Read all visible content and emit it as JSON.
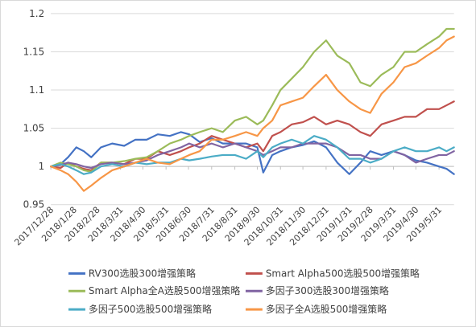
{
  "chart_data": {
    "type": "line",
    "title": "",
    "xlabel": "",
    "ylabel": "",
    "ylim": [
      0.95,
      1.2
    ],
    "yticks": [
      "0.95",
      "1",
      "1.05",
      "1.1",
      "1.15",
      "1.2"
    ],
    "yticks_values": [
      0.95,
      1.0,
      1.05,
      1.1,
      1.15,
      1.2
    ],
    "x_tick_labels": [
      "2017/12/28",
      "2018/1/28",
      "2018/2/28",
      "2018/3/31",
      "2018/4/30",
      "2018/5/31",
      "2018/6/30",
      "2018/7/31",
      "2018/8/31",
      "2018/9/30",
      "2018/10/31",
      "2018/11/30",
      "2018/12/31",
      "2019/1/31",
      "2019/2/28",
      "2019/3/31",
      "2019/4/30",
      "2019/5/31"
    ],
    "grid": "horizontal",
    "legend_position": "bottom",
    "x_start": "2017/12/28",
    "x_end": "2019/6/20",
    "series": [
      {
        "name": "RV300选股300增强策略",
        "color": "#4472C4",
        "x": [
          "2017/12/28",
          "2018/1/10",
          "2018/1/20",
          "2018/1/31",
          "2018/2/10",
          "2018/2/20",
          "2018/3/5",
          "2018/3/20",
          "2018/4/5",
          "2018/4/20",
          "2018/5/5",
          "2018/5/20",
          "2018/6/5",
          "2018/6/20",
          "2018/7/1",
          "2018/7/15",
          "2018/7/31",
          "2018/8/15",
          "2018/8/31",
          "2018/9/15",
          "2018/9/30",
          "2018/10/8",
          "2018/10/20",
          "2018/10/31",
          "2018/11/15",
          "2018/11/30",
          "2018/12/15",
          "2018/12/31",
          "2019/1/15",
          "2019/1/31",
          "2019/2/15",
          "2019/2/28",
          "2019/3/15",
          "2019/3/31",
          "2019/4/15",
          "2019/4/30",
          "2019/5/15",
          "2019/5/31",
          "2019/6/10",
          "2019/6/20"
        ],
        "values": [
          1.0,
          1.003,
          1.012,
          1.025,
          1.02,
          1.012,
          1.025,
          1.03,
          1.027,
          1.035,
          1.035,
          1.042,
          1.04,
          1.045,
          1.042,
          1.032,
          1.037,
          1.03,
          1.03,
          1.03,
          1.025,
          0.992,
          1.015,
          1.02,
          1.025,
          1.028,
          1.033,
          1.025,
          1.005,
          0.99,
          1.005,
          1.02,
          1.015,
          1.02,
          1.015,
          1.008,
          1.005,
          1.0,
          0.997,
          0.99
        ]
      },
      {
        "name": "Smart Alpha500选股500增强策略",
        "color": "#C0504D",
        "x": [
          "2017/12/28",
          "2018/1/10",
          "2018/1/20",
          "2018/1/31",
          "2018/2/10",
          "2018/2/20",
          "2018/3/5",
          "2018/3/20",
          "2018/4/5",
          "2018/4/20",
          "2018/5/5",
          "2018/5/20",
          "2018/6/5",
          "2018/6/20",
          "2018/7/1",
          "2018/7/15",
          "2018/7/31",
          "2018/8/15",
          "2018/8/31",
          "2018/9/15",
          "2018/9/30",
          "2018/10/8",
          "2018/10/20",
          "2018/10/31",
          "2018/11/15",
          "2018/11/30",
          "2018/12/15",
          "2018/12/31",
          "2019/1/15",
          "2019/1/31",
          "2019/2/15",
          "2019/2/28",
          "2019/3/15",
          "2019/3/31",
          "2019/4/15",
          "2019/4/30",
          "2019/5/15",
          "2019/5/31",
          "2019/6/10",
          "2019/6/20"
        ],
        "values": [
          1.0,
          0.998,
          1.005,
          1.0,
          0.997,
          0.995,
          1.005,
          1.005,
          1.003,
          1.01,
          1.01,
          1.02,
          1.015,
          1.02,
          1.025,
          1.03,
          1.04,
          1.035,
          1.03,
          1.025,
          1.03,
          1.02,
          1.04,
          1.045,
          1.055,
          1.058,
          1.065,
          1.055,
          1.06,
          1.055,
          1.045,
          1.04,
          1.055,
          1.06,
          1.065,
          1.065,
          1.075,
          1.075,
          1.08,
          1.085
        ]
      },
      {
        "name": "Smart Alpha全A选股500增强策略",
        "color": "#9BBB59",
        "x": [
          "2017/12/28",
          "2018/1/10",
          "2018/1/20",
          "2018/1/31",
          "2018/2/10",
          "2018/2/20",
          "2018/3/5",
          "2018/3/20",
          "2018/4/5",
          "2018/4/20",
          "2018/5/5",
          "2018/5/20",
          "2018/6/5",
          "2018/6/20",
          "2018/7/1",
          "2018/7/15",
          "2018/7/31",
          "2018/8/15",
          "2018/8/31",
          "2018/9/15",
          "2018/9/30",
          "2018/10/8",
          "2018/10/20",
          "2018/10/31",
          "2018/11/15",
          "2018/11/30",
          "2018/12/15",
          "2018/12/31",
          "2019/1/15",
          "2019/1/31",
          "2019/2/15",
          "2019/2/28",
          "2019/3/15",
          "2019/3/31",
          "2019/4/15",
          "2019/4/30",
          "2019/5/15",
          "2019/5/31",
          "2019/6/10",
          "2019/6/20"
        ],
        "values": [
          1.0,
          1.005,
          1.003,
          1.0,
          0.995,
          0.993,
          1.005,
          1.005,
          1.007,
          1.01,
          1.012,
          1.02,
          1.03,
          1.035,
          1.04,
          1.045,
          1.05,
          1.045,
          1.06,
          1.065,
          1.055,
          1.06,
          1.08,
          1.1,
          1.115,
          1.13,
          1.15,
          1.165,
          1.145,
          1.135,
          1.11,
          1.105,
          1.12,
          1.13,
          1.15,
          1.15,
          1.16,
          1.17,
          1.18,
          1.18
        ]
      },
      {
        "name": "多因子300选股300增强策略",
        "color": "#8064A2",
        "x": [
          "2017/12/28",
          "2018/1/10",
          "2018/1/20",
          "2018/1/31",
          "2018/2/10",
          "2018/2/20",
          "2018/3/5",
          "2018/3/20",
          "2018/4/5",
          "2018/4/20",
          "2018/5/5",
          "2018/5/20",
          "2018/6/5",
          "2018/6/20",
          "2018/7/1",
          "2018/7/15",
          "2018/7/31",
          "2018/8/15",
          "2018/8/31",
          "2018/9/15",
          "2018/9/30",
          "2018/10/8",
          "2018/10/20",
          "2018/10/31",
          "2018/11/15",
          "2018/11/30",
          "2018/12/15",
          "2018/12/31",
          "2019/1/15",
          "2019/1/31",
          "2019/2/15",
          "2019/2/28",
          "2019/3/15",
          "2019/3/31",
          "2019/4/15",
          "2019/4/30",
          "2019/5/15",
          "2019/5/31",
          "2019/6/10",
          "2019/6/20"
        ],
        "values": [
          1.0,
          1.002,
          1.005,
          1.003,
          1.0,
          0.998,
          1.003,
          1.005,
          1.003,
          1.005,
          1.008,
          1.015,
          1.02,
          1.025,
          1.03,
          1.025,
          1.03,
          1.025,
          1.03,
          1.025,
          1.02,
          1.015,
          1.02,
          1.025,
          1.025,
          1.03,
          1.03,
          1.03,
          1.025,
          1.015,
          1.015,
          1.01,
          1.01,
          1.02,
          1.015,
          1.005,
          1.01,
          1.015,
          1.015,
          1.02
        ]
      },
      {
        "name": "多因子500选股500增强策略",
        "color": "#4BACC6",
        "x": [
          "2017/12/28",
          "2018/1/10",
          "2018/1/20",
          "2018/1/31",
          "2018/2/10",
          "2018/2/20",
          "2018/3/5",
          "2018/3/20",
          "2018/4/5",
          "2018/4/20",
          "2018/5/5",
          "2018/5/20",
          "2018/6/5",
          "2018/6/20",
          "2018/7/1",
          "2018/7/15",
          "2018/7/31",
          "2018/8/15",
          "2018/8/31",
          "2018/9/15",
          "2018/9/30",
          "2018/10/8",
          "2018/10/20",
          "2018/10/31",
          "2018/11/15",
          "2018/11/30",
          "2018/12/15",
          "2018/12/31",
          "2019/1/15",
          "2019/1/31",
          "2019/2/15",
          "2019/2/28",
          "2019/3/15",
          "2019/3/31",
          "2019/4/15",
          "2019/4/30",
          "2019/5/15",
          "2019/5/31",
          "2019/6/10",
          "2019/6/20"
        ],
        "values": [
          1.0,
          1.003,
          1.0,
          0.995,
          0.99,
          0.992,
          1.0,
          1.003,
          1.0,
          1.005,
          1.003,
          1.005,
          1.005,
          1.01,
          1.008,
          1.01,
          1.013,
          1.015,
          1.015,
          1.01,
          1.02,
          1.012,
          1.025,
          1.03,
          1.035,
          1.03,
          1.04,
          1.035,
          1.025,
          1.01,
          1.01,
          1.005,
          1.01,
          1.02,
          1.025,
          1.02,
          1.02,
          1.025,
          1.02,
          1.025
        ]
      },
      {
        "name": "多因子全A选股500增强策略",
        "color": "#F79646",
        "x": [
          "2017/12/28",
          "2018/1/10",
          "2018/1/20",
          "2018/1/31",
          "2018/2/10",
          "2018/2/20",
          "2018/3/5",
          "2018/3/20",
          "2018/4/5",
          "2018/4/20",
          "2018/5/5",
          "2018/5/20",
          "2018/6/5",
          "2018/6/20",
          "2018/7/1",
          "2018/7/15",
          "2018/7/31",
          "2018/8/15",
          "2018/8/31",
          "2018/9/15",
          "2018/9/30",
          "2018/10/8",
          "2018/10/20",
          "2018/10/31",
          "2018/11/15",
          "2018/11/30",
          "2018/12/15",
          "2018/12/31",
          "2019/1/15",
          "2019/1/31",
          "2019/2/15",
          "2019/2/28",
          "2019/3/15",
          "2019/3/31",
          "2019/4/15",
          "2019/4/30",
          "2019/5/15",
          "2019/5/31",
          "2019/6/10",
          "2019/6/20"
        ],
        "values": [
          1.0,
          0.995,
          0.99,
          0.98,
          0.968,
          0.975,
          0.985,
          0.995,
          1.0,
          1.005,
          1.01,
          1.005,
          1.003,
          1.01,
          1.015,
          1.02,
          1.035,
          1.035,
          1.04,
          1.045,
          1.04,
          1.05,
          1.06,
          1.08,
          1.085,
          1.09,
          1.105,
          1.12,
          1.1,
          1.085,
          1.075,
          1.07,
          1.095,
          1.11,
          1.13,
          1.135,
          1.145,
          1.155,
          1.165,
          1.17
        ]
      }
    ]
  }
}
